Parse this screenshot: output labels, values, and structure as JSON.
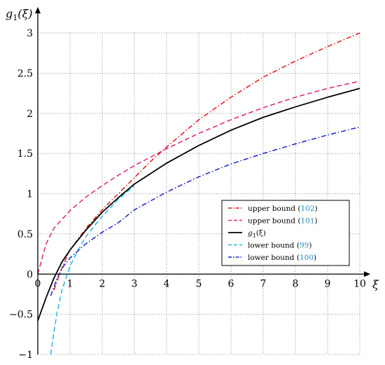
{
  "chart_data": {
    "type": "line",
    "xlabel": "ξ",
    "ylabel": "g1(ξ)",
    "ylabel_base": "g",
    "ylabel_sub": "1",
    "ylabel_arg": "(ξ)",
    "xlim": [
      0,
      10
    ],
    "ylim": [
      -1,
      3
    ],
    "x_ticks": [
      0,
      1,
      2,
      3,
      4,
      5,
      6,
      7,
      8,
      9,
      10
    ],
    "y_ticks": [
      -1,
      -0.5,
      0,
      0.5,
      1,
      1.5,
      2,
      2.5,
      3
    ],
    "x_tick_labels": [
      "0",
      "1",
      "2",
      "3",
      "4",
      "5",
      "6",
      "7",
      "8",
      "9",
      "10"
    ],
    "y_tick_labels": [
      "−1",
      "−0.5",
      "0",
      "0.5",
      "1",
      "1.5",
      "2",
      "2.5",
      "3"
    ],
    "grid": true,
    "legend_position": "center-right",
    "series": [
      {
        "name": "upper bound (102)",
        "label_text": "upper bound (",
        "label_ref": "102",
        "label_close": ")",
        "color": "#e0161e",
        "dash": "dashdot",
        "x": [
          0.5,
          0.75,
          1,
          1.5,
          2,
          2.5,
          3,
          3.5,
          4,
          5,
          6,
          7,
          8,
          9,
          10
        ],
        "y": [
          -0.2,
          0.08,
          0.3,
          0.57,
          0.8,
          1.0,
          1.2,
          1.4,
          1.58,
          1.92,
          2.2,
          2.45,
          2.65,
          2.83,
          3.0
        ]
      },
      {
        "name": "upper bound (101)",
        "label_text": "upper bound (",
        "label_ref": "101",
        "label_close": ")",
        "color": "#e0207f",
        "dash": "dashed",
        "x": [
          0,
          0.25,
          0.5,
          1,
          1.5,
          2,
          2.5,
          3,
          4,
          5,
          6,
          7,
          8,
          9,
          10
        ],
        "y": [
          0,
          0.37,
          0.57,
          0.79,
          0.96,
          1.1,
          1.23,
          1.35,
          1.56,
          1.75,
          1.92,
          2.07,
          2.2,
          2.31,
          2.4
        ]
      },
      {
        "name": "g1(ξ)",
        "label_base": "g",
        "label_sub": "1",
        "label_arg": "(ξ)",
        "color": "#000000",
        "dash": "solid",
        "x": [
          0,
          0.25,
          0.5,
          0.75,
          1,
          1.5,
          2,
          2.5,
          3,
          4,
          5,
          6,
          7,
          8,
          9,
          10
        ],
        "y": [
          -0.58,
          -0.3,
          -0.05,
          0.15,
          0.3,
          0.55,
          0.77,
          0.95,
          1.12,
          1.38,
          1.6,
          1.79,
          1.95,
          2.08,
          2.2,
          2.31
        ]
      },
      {
        "name": "lower bound (99)",
        "label_text": "lower bound (",
        "label_ref": "99",
        "label_close": ")",
        "color": "#26b5e6",
        "dash": "dashed",
        "x": [
          0.4,
          0.5,
          0.6,
          0.75,
          1,
          1.25,
          1.5,
          2,
          2.5,
          3
        ],
        "y": [
          -1.0,
          -0.72,
          -0.48,
          -0.2,
          0.1,
          0.3,
          0.47,
          0.72,
          0.93,
          1.1
        ]
      },
      {
        "name": "lower bound (100)",
        "label_text": "lower bound (",
        "label_ref": "100",
        "label_close": ")",
        "color": "#1a22c8",
        "dash": "dashdot",
        "x": [
          0.4,
          0.6,
          0.8,
          1,
          1.5,
          2,
          2.5,
          3,
          4,
          5,
          6,
          7,
          8,
          9,
          10
        ],
        "y": [
          -0.27,
          -0.05,
          0.1,
          0.2,
          0.38,
          0.52,
          0.64,
          0.8,
          1.02,
          1.21,
          1.37,
          1.5,
          1.62,
          1.73,
          1.83
        ]
      }
    ]
  }
}
